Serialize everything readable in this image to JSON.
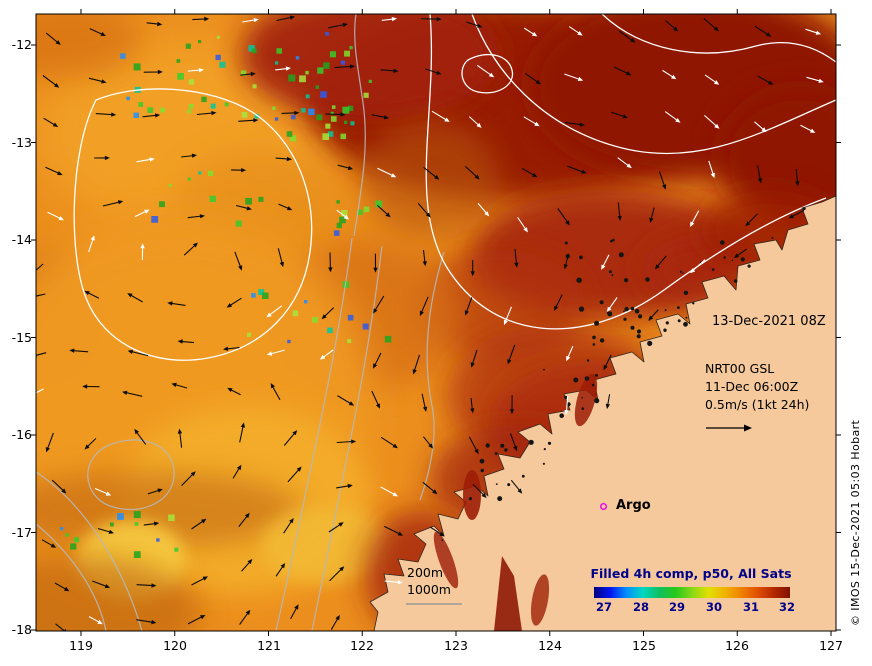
{
  "colors": {
    "land": "#f5c99c",
    "ocean_base": "#eb8e1e",
    "sst_hot": "#8f1804",
    "contour_sea_level": "#ffffff",
    "contour_bathymetry": "#b8b8b8",
    "argo_marker": "#ee00ee",
    "colorbar_text": "#00008b"
  },
  "axes": {
    "x_tick_labels": [
      "119",
      "120",
      "121",
      "122",
      "123",
      "124",
      "125",
      "126",
      "127"
    ],
    "y_tick_labels": [
      "-12",
      "-13",
      "-14",
      "-15",
      "-16",
      "-17",
      "-18"
    ]
  },
  "annotations": {
    "datetime": "13-Dec-2021 08Z",
    "gsl_source": "NRT00 GSL",
    "gsl_datetime": "11-Dec 06:00Z",
    "current_scale": "0.5m/s (1kt 24h)",
    "argo": "Argo",
    "depth_200": "200m",
    "depth_1000": "1000m"
  },
  "colorbar": {
    "title": "Filled 4h comp, p50, All Sats",
    "tick_labels": [
      "27",
      "28",
      "29",
      "30",
      "31",
      "32"
    ],
    "gradient_colors": [
      "#000082",
      "#0018f0",
      "#0090ff",
      "#00d8c0",
      "#10c060",
      "#28c818",
      "#88d818",
      "#e0e000",
      "#f0b400",
      "#f08200",
      "#e05000",
      "#b42800",
      "#801000"
    ]
  },
  "credit": "© IMOS 15-Dec-2021 05:03 Hobart"
}
